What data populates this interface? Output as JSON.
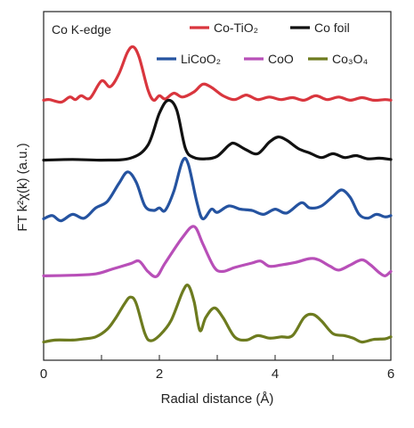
{
  "chart_data": {
    "type": "line",
    "annotation": "Co K-edge",
    "xlabel": "Radial distance (Å)",
    "ylabel": "FT k²χ(k) (a.u.)",
    "xlim": [
      0,
      6
    ],
    "xticks": [
      "0",
      "2",
      "4",
      "6"
    ],
    "y_ticks_shown": false,
    "grid": false,
    "legend_placement": "top-right",
    "series": [
      {
        "name": "Co-TiO₂",
        "color": "#d9363e",
        "offset": 4,
        "points": [
          [
            0,
            0.05
          ],
          [
            0.1,
            0.06
          ],
          [
            0.3,
            0.02
          ],
          [
            0.45,
            0.1
          ],
          [
            0.55,
            0.06
          ],
          [
            0.65,
            0.12
          ],
          [
            0.8,
            0.08
          ],
          [
            1.0,
            0.35
          ],
          [
            1.15,
            0.26
          ],
          [
            1.3,
            0.46
          ],
          [
            1.45,
            0.8
          ],
          [
            1.55,
            0.88
          ],
          [
            1.65,
            0.72
          ],
          [
            1.8,
            0.22
          ],
          [
            1.9,
            0.05
          ],
          [
            2.0,
            0.12
          ],
          [
            2.1,
            0.07
          ],
          [
            2.25,
            0.16
          ],
          [
            2.4,
            0.1
          ],
          [
            2.6,
            0.18
          ],
          [
            2.75,
            0.3
          ],
          [
            2.9,
            0.25
          ],
          [
            3.1,
            0.12
          ],
          [
            3.3,
            0.06
          ],
          [
            3.5,
            0.13
          ],
          [
            3.7,
            0.06
          ],
          [
            3.9,
            0.1
          ],
          [
            4.1,
            0.06
          ],
          [
            4.3,
            0.09
          ],
          [
            4.5,
            0.05
          ],
          [
            4.7,
            0.12
          ],
          [
            4.9,
            0.06
          ],
          [
            5.1,
            0.1
          ],
          [
            5.3,
            0.05
          ],
          [
            5.5,
            0.09
          ],
          [
            5.7,
            0.05
          ],
          [
            5.9,
            0.06
          ],
          [
            6,
            0.05
          ]
        ]
      },
      {
        "name": "Co foil",
        "color": "#111111",
        "offset": 3,
        "points": [
          [
            0,
            0.02
          ],
          [
            0.5,
            0.03
          ],
          [
            1.0,
            0.02
          ],
          [
            1.5,
            0.05
          ],
          [
            1.8,
            0.25
          ],
          [
            2.0,
            0.75
          ],
          [
            2.15,
            0.95
          ],
          [
            2.3,
            0.8
          ],
          [
            2.45,
            0.2
          ],
          [
            2.6,
            0.06
          ],
          [
            2.8,
            0.04
          ],
          [
            3.0,
            0.08
          ],
          [
            3.2,
            0.25
          ],
          [
            3.3,
            0.28
          ],
          [
            3.5,
            0.18
          ],
          [
            3.7,
            0.12
          ],
          [
            3.9,
            0.3
          ],
          [
            4.05,
            0.38
          ],
          [
            4.2,
            0.33
          ],
          [
            4.4,
            0.2
          ],
          [
            4.6,
            0.13
          ],
          [
            4.8,
            0.06
          ],
          [
            5.0,
            0.12
          ],
          [
            5.2,
            0.06
          ],
          [
            5.4,
            0.09
          ],
          [
            5.6,
            0.04
          ],
          [
            5.8,
            0.05
          ],
          [
            6,
            0.03
          ]
        ]
      },
      {
        "name": "LiCoO₂",
        "color": "#2553a0",
        "offset": 2,
        "points": [
          [
            0,
            0.05
          ],
          [
            0.15,
            0.1
          ],
          [
            0.3,
            0.02
          ],
          [
            0.5,
            0.12
          ],
          [
            0.7,
            0.06
          ],
          [
            0.9,
            0.22
          ],
          [
            1.1,
            0.32
          ],
          [
            1.3,
            0.6
          ],
          [
            1.45,
            0.78
          ],
          [
            1.6,
            0.62
          ],
          [
            1.75,
            0.25
          ],
          [
            1.9,
            0.18
          ],
          [
            2.0,
            0.22
          ],
          [
            2.1,
            0.18
          ],
          [
            2.25,
            0.48
          ],
          [
            2.4,
            0.95
          ],
          [
            2.5,
            0.9
          ],
          [
            2.65,
            0.3
          ],
          [
            2.75,
            0.05
          ],
          [
            2.9,
            0.2
          ],
          [
            3.0,
            0.15
          ],
          [
            3.2,
            0.25
          ],
          [
            3.4,
            0.2
          ],
          [
            3.6,
            0.18
          ],
          [
            3.8,
            0.12
          ],
          [
            4.0,
            0.2
          ],
          [
            4.2,
            0.14
          ],
          [
            4.45,
            0.3
          ],
          [
            4.6,
            0.22
          ],
          [
            4.8,
            0.25
          ],
          [
            5.0,
            0.4
          ],
          [
            5.15,
            0.5
          ],
          [
            5.3,
            0.38
          ],
          [
            5.45,
            0.12
          ],
          [
            5.6,
            0.06
          ],
          [
            5.75,
            0.12
          ],
          [
            5.9,
            0.08
          ],
          [
            6,
            0.1
          ]
        ]
      },
      {
        "name": "CoO",
        "color": "#b84fb8",
        "offset": 1,
        "points": [
          [
            0,
            0.05
          ],
          [
            0.5,
            0.06
          ],
          [
            0.9,
            0.08
          ],
          [
            1.2,
            0.16
          ],
          [
            1.5,
            0.24
          ],
          [
            1.65,
            0.28
          ],
          [
            1.8,
            0.12
          ],
          [
            1.95,
            0.04
          ],
          [
            2.1,
            0.25
          ],
          [
            2.4,
            0.65
          ],
          [
            2.6,
            0.82
          ],
          [
            2.75,
            0.55
          ],
          [
            2.95,
            0.18
          ],
          [
            3.1,
            0.12
          ],
          [
            3.3,
            0.18
          ],
          [
            3.6,
            0.25
          ],
          [
            3.75,
            0.28
          ],
          [
            3.9,
            0.2
          ],
          [
            4.1,
            0.22
          ],
          [
            4.35,
            0.26
          ],
          [
            4.6,
            0.32
          ],
          [
            4.75,
            0.3
          ],
          [
            4.95,
            0.2
          ],
          [
            5.1,
            0.14
          ],
          [
            5.3,
            0.22
          ],
          [
            5.5,
            0.3
          ],
          [
            5.65,
            0.22
          ],
          [
            5.8,
            0.1
          ],
          [
            5.9,
            0.05
          ],
          [
            6,
            0.12
          ]
        ]
      },
      {
        "name": "Co₃O₄",
        "color": "#6d7b1f",
        "offset": 0,
        "points": [
          [
            0,
            0.02
          ],
          [
            0.2,
            0.05
          ],
          [
            0.5,
            0.05
          ],
          [
            0.7,
            0.07
          ],
          [
            0.9,
            0.1
          ],
          [
            1.1,
            0.22
          ],
          [
            1.25,
            0.4
          ],
          [
            1.4,
            0.62
          ],
          [
            1.5,
            0.72
          ],
          [
            1.6,
            0.62
          ],
          [
            1.75,
            0.15
          ],
          [
            1.85,
            0.04
          ],
          [
            2.0,
            0.12
          ],
          [
            2.2,
            0.35
          ],
          [
            2.4,
            0.8
          ],
          [
            2.5,
            0.9
          ],
          [
            2.6,
            0.65
          ],
          [
            2.7,
            0.2
          ],
          [
            2.8,
            0.4
          ],
          [
            2.95,
            0.55
          ],
          [
            3.1,
            0.4
          ],
          [
            3.3,
            0.1
          ],
          [
            3.5,
            0.05
          ],
          [
            3.7,
            0.12
          ],
          [
            3.9,
            0.08
          ],
          [
            4.1,
            0.1
          ],
          [
            4.3,
            0.12
          ],
          [
            4.5,
            0.4
          ],
          [
            4.65,
            0.45
          ],
          [
            4.8,
            0.35
          ],
          [
            5.0,
            0.15
          ],
          [
            5.2,
            0.12
          ],
          [
            5.35,
            0.08
          ],
          [
            5.5,
            0.02
          ],
          [
            5.7,
            0.06
          ],
          [
            5.9,
            0.07
          ],
          [
            6,
            0.1
          ]
        ]
      }
    ]
  }
}
